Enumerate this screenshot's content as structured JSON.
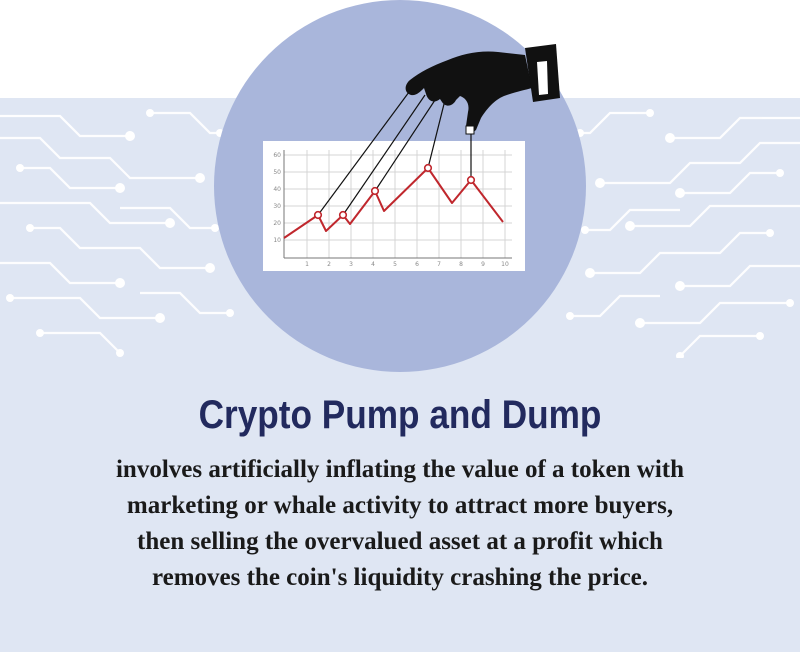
{
  "heading": {
    "title": "Crypto Pump and Dump"
  },
  "description": {
    "lines": [
      "involves artificially inflating the value of a token with",
      "marketing or whale activity to attract more buyers,",
      "then selling the overvalued asset at a profit which",
      "removes the coin's liquidity crashing the price."
    ]
  },
  "illustration": {
    "icons": [
      "circuit-pattern",
      "puppeteer-hand",
      "line-chart",
      "puppet-strings"
    ],
    "colors": {
      "circle": "#a9b6db",
      "band": "#dfe6f3",
      "line": "#c0272d",
      "title": "#222a5e",
      "hand": "#111111"
    },
    "chart": {
      "y_ticks": [
        "10",
        "20",
        "30",
        "40",
        "50",
        "60"
      ],
      "x_ticks": [
        "1",
        "2",
        "3",
        "4",
        "5",
        "6",
        "7",
        "8",
        "9",
        "10"
      ]
    }
  }
}
